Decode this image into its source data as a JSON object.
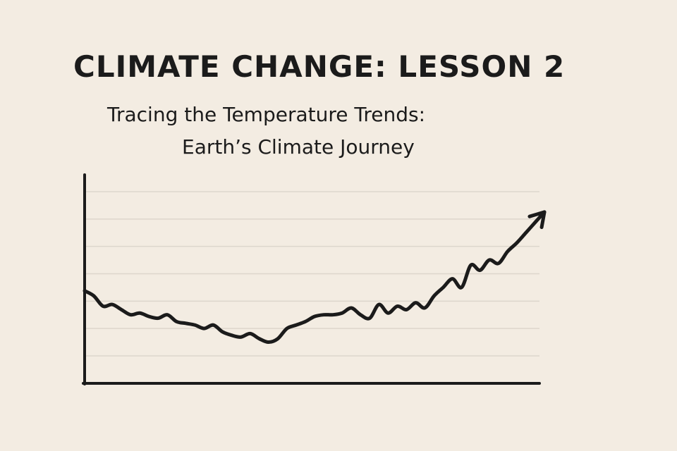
{
  "lesson": {
    "title": "CLIMATE CHANGE: LESSON 2",
    "subtitle_line1": "Tracing the Temperature Trends:",
    "subtitle_line2": "Earth’s Climate Journey"
  },
  "chart_data": {
    "type": "line",
    "title": "",
    "xlabel": "",
    "ylabel": "",
    "grid": true,
    "legend": "none",
    "arrow_end": true,
    "line_color": "#1b1b1b",
    "grid_color": "#ddd6cc",
    "gridline_count": 7,
    "xlim": [
      0,
      100
    ],
    "ylim": [
      0,
      100
    ],
    "series": [
      {
        "x": [
          0,
          2,
          4,
          6,
          8,
          10,
          12,
          14,
          16,
          18,
          20,
          22,
          24,
          26,
          28,
          30,
          32,
          34,
          36,
          38,
          40,
          42,
          44,
          46,
          48,
          50,
          52,
          54,
          56,
          58,
          60,
          62,
          64,
          66,
          68,
          70,
          72,
          74,
          76,
          78,
          80,
          82,
          84,
          86,
          88,
          90,
          92,
          94,
          96,
          98,
          100
        ],
        "y": [
          38,
          35,
          29,
          30,
          27,
          24,
          25,
          23,
          22,
          24,
          20,
          19,
          18,
          16,
          18,
          14,
          12,
          11,
          13,
          10,
          8,
          10,
          16,
          18,
          20,
          23,
          24,
          24,
          25,
          28,
          24,
          22,
          30,
          25,
          29,
          27,
          31,
          28,
          35,
          40,
          45,
          40,
          53,
          50,
          56,
          54,
          61,
          66,
          72,
          78,
          84
        ]
      }
    ]
  }
}
